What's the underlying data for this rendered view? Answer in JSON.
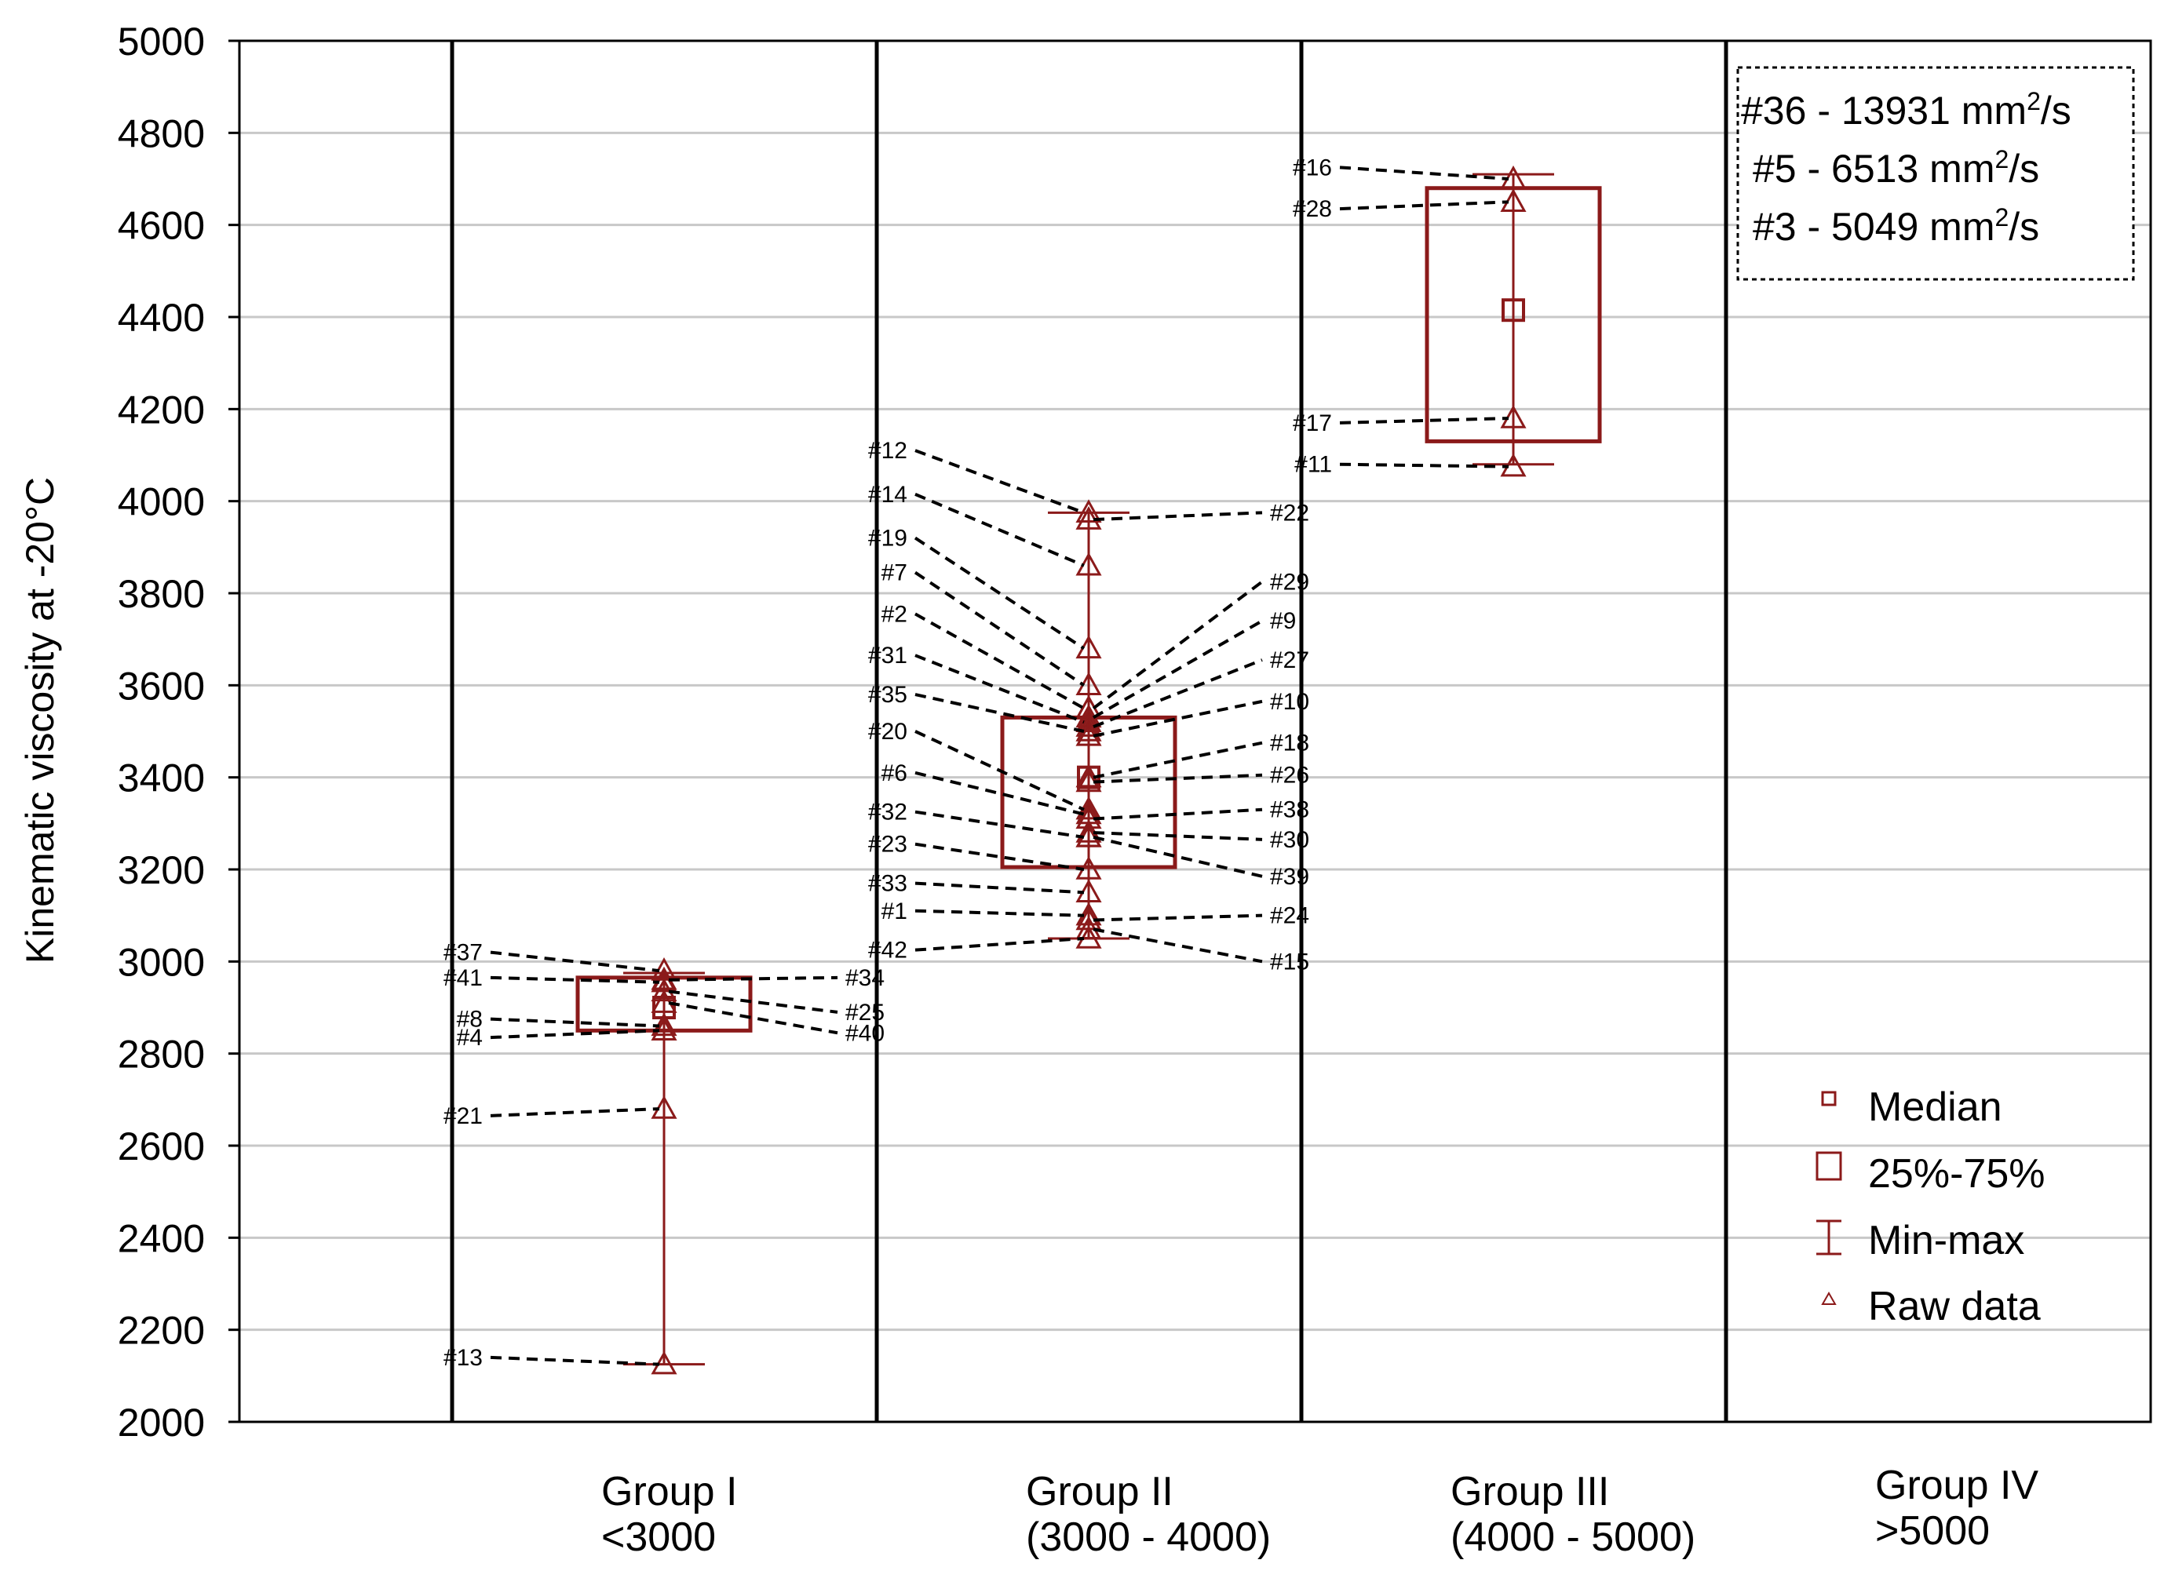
{
  "chart_data": {
    "type": "box",
    "title": "",
    "xlabel": "",
    "ylabel": "Kinematic viscosity at -20°C",
    "ylim": [
      2000,
      5000
    ],
    "yticks": [
      2000,
      2200,
      2400,
      2600,
      2800,
      3000,
      3200,
      3400,
      3600,
      3800,
      4000,
      4200,
      4400,
      4600,
      4800,
      5000
    ],
    "ytick_labels": [
      "2000",
      "2200",
      "2400",
      "2600",
      "2800",
      "3000",
      "3200",
      "3400",
      "3600",
      "3800",
      "4000",
      "4200",
      "4400",
      "4600",
      "4800",
      "5000"
    ],
    "grid": true,
    "categories": [
      {
        "line1": "Group I",
        "line2": "<3000"
      },
      {
        "line1": "Group II",
        "line2": "(3000 - 4000)"
      },
      {
        "line1": "Group III",
        "line2": "(4000 - 5000)"
      },
      {
        "line1": "Group IV",
        "line2": ">5000"
      }
    ],
    "boxes": [
      {
        "group": "Group I",
        "median": 2900,
        "q1": 2850,
        "q3": 2965,
        "min": 2125,
        "max": 2975
      },
      {
        "group": "Group II",
        "median": 3400,
        "q1": 3205,
        "q3": 3530,
        "min": 3050,
        "max": 3975
      },
      {
        "group": "Group III",
        "median": 4415,
        "q1": 4130,
        "q3": 4680,
        "min": 4080,
        "max": 4710
      }
    ],
    "raw_data": [
      {
        "group": 0,
        "points": [
          {
            "label": "#37",
            "value": 2980,
            "side": "left",
            "label_value": 3020
          },
          {
            "label": "#41",
            "value": 2955,
            "side": "left",
            "label_value": 2965
          },
          {
            "label": "#8",
            "value": 2860,
            "side": "left",
            "label_value": 2875
          },
          {
            "label": "#4",
            "value": 2850,
            "side": "left",
            "label_value": 2835
          },
          {
            "label": "#21",
            "value": 2680,
            "side": "left",
            "label_value": 2665
          },
          {
            "label": "#13",
            "value": 2125,
            "side": "left",
            "label_value": 2140
          },
          {
            "label": "#34",
            "value": 2960,
            "side": "right",
            "label_value": 2965
          },
          {
            "label": "#25",
            "value": 2935,
            "side": "right",
            "label_value": 2890
          },
          {
            "label": "#40",
            "value": 2910,
            "side": "right",
            "label_value": 2845
          }
        ]
      },
      {
        "group": 1,
        "points": [
          {
            "label": "#12",
            "value": 3975,
            "side": "left",
            "label_value": 4110
          },
          {
            "label": "#14",
            "value": 3860,
            "side": "left",
            "label_value": 4015
          },
          {
            "label": "#19",
            "value": 3680,
            "side": "left",
            "label_value": 3920
          },
          {
            "label": "#7",
            "value": 3600,
            "side": "left",
            "label_value": 3845
          },
          {
            "label": "#2",
            "value": 3550,
            "side": "left",
            "label_value": 3755
          },
          {
            "label": "#31",
            "value": 3520,
            "side": "left",
            "label_value": 3665
          },
          {
            "label": "#35",
            "value": 3500,
            "side": "left",
            "label_value": 3580
          },
          {
            "label": "#20",
            "value": 3330,
            "side": "left",
            "label_value": 3500
          },
          {
            "label": "#6",
            "value": 3320,
            "side": "left",
            "label_value": 3410
          },
          {
            "label": "#32",
            "value": 3270,
            "side": "left",
            "label_value": 3325
          },
          {
            "label": "#23",
            "value": 3200,
            "side": "left",
            "label_value": 3255
          },
          {
            "label": "#33",
            "value": 3150,
            "side": "left",
            "label_value": 3170
          },
          {
            "label": "#1",
            "value": 3100,
            "side": "left",
            "label_value": 3110
          },
          {
            "label": "#42",
            "value": 3050,
            "side": "left",
            "label_value": 3025
          },
          {
            "label": "#22",
            "value": 3960,
            "side": "right",
            "label_value": 3975
          },
          {
            "label": "#29",
            "value": 3550,
            "side": "right",
            "label_value": 3825
          },
          {
            "label": "#9",
            "value": 3530,
            "side": "right",
            "label_value": 3740
          },
          {
            "label": "#27",
            "value": 3510,
            "side": "right",
            "label_value": 3655
          },
          {
            "label": "#10",
            "value": 3490,
            "side": "right",
            "label_value": 3565
          },
          {
            "label": "#18",
            "value": 3400,
            "side": "right",
            "label_value": 3475
          },
          {
            "label": "#26",
            "value": 3390,
            "side": "right",
            "label_value": 3405
          },
          {
            "label": "#38",
            "value": 3310,
            "side": "right",
            "label_value": 3330
          },
          {
            "label": "#30",
            "value": 3280,
            "side": "right",
            "label_value": 3265
          },
          {
            "label": "#39",
            "value": 3270,
            "side": "right",
            "label_value": 3185
          },
          {
            "label": "#24",
            "value": 3090,
            "side": "right",
            "label_value": 3100
          },
          {
            "label": "#15",
            "value": 3070,
            "side": "right",
            "label_value": 3000
          }
        ]
      },
      {
        "group": 2,
        "points": [
          {
            "label": "#16",
            "value": 4700,
            "side": "left",
            "label_value": 4725
          },
          {
            "label": "#28",
            "value": 4650,
            "side": "left",
            "label_value": 4635
          },
          {
            "label": "#17",
            "value": 4180,
            "side": "left",
            "label_value": 4170
          },
          {
            "label": "#11",
            "value": 4075,
            "side": "left",
            "label_value": 4080
          }
        ]
      }
    ],
    "annotation_box": [
      {
        "pre": "#36 - 13931 mm",
        "sup": "2",
        "post": "/s"
      },
      {
        "pre": "#5 - 6513 mm",
        "sup": "2",
        "post": "/s"
      },
      {
        "pre": "#3 - 5049 mm",
        "sup": "2",
        "post": "/s"
      }
    ],
    "legend": {
      "position": "bottom-right",
      "entries": [
        "Median",
        "25%-75%",
        "Min-max",
        "Raw data"
      ]
    },
    "colors": {
      "box": "#8b1a1a",
      "grid": "#c8c8c8",
      "axis": "#000000",
      "leader": "#000000"
    }
  }
}
